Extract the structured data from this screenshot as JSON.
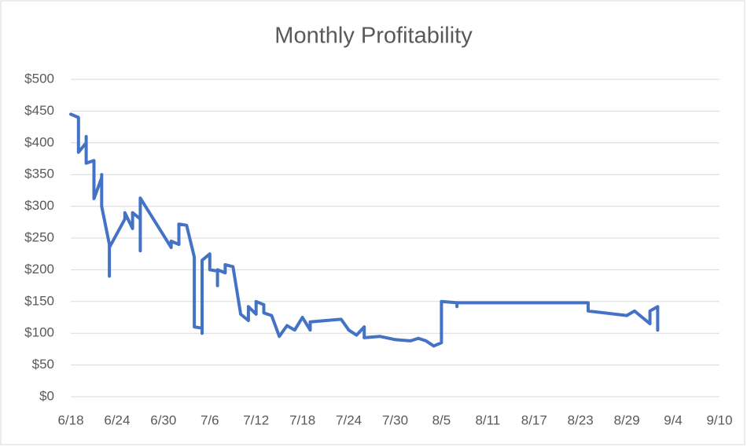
{
  "chart_data": {
    "type": "line",
    "title": "Monthly Profitability",
    "color": "#4472c4",
    "grid": true,
    "x": [
      "6/18",
      "6/19",
      "6/19",
      "6/20",
      "6/20",
      "6/20",
      "6/21",
      "6/21",
      "6/21",
      "6/21",
      "6/22",
      "6/22",
      "6/22",
      "6/22",
      "6/23",
      "6/23",
      "6/23",
      "6/25",
      "6/25",
      "6/26",
      "6/26",
      "6/27",
      "6/27",
      "6/27",
      "7/1",
      "7/1",
      "7/2",
      "7/2",
      "7/3",
      "7/4",
      "7/4",
      "7/5",
      "7/5",
      "7/5",
      "7/6",
      "7/6",
      "7/7",
      "7/7",
      "7/7",
      "7/8",
      "7/8",
      "7/9",
      "7/10",
      "7/11",
      "7/11",
      "7/12",
      "7/12",
      "7/13",
      "7/13",
      "7/14",
      "7/15",
      "7/16",
      "7/17",
      "7/18",
      "7/19",
      "7/19",
      "7/23",
      "7/24",
      "7/25",
      "7/26",
      "7/26",
      "7/28",
      "7/30",
      "8/1",
      "8/2",
      "8/3",
      "8/4",
      "8/5",
      "8/5",
      "8/7",
      "8/7",
      "8/7",
      "8/24",
      "8/24",
      "8/29",
      "8/30",
      "8/31",
      "9/1",
      "9/1",
      "9/2",
      "9/2"
    ],
    "values": [
      445,
      440,
      385,
      400,
      410,
      368,
      372,
      365,
      365,
      312,
      345,
      325,
      350,
      300,
      240,
      190,
      235,
      280,
      290,
      265,
      290,
      280,
      230,
      313,
      235,
      245,
      240,
      272,
      270,
      220,
      110,
      108,
      100,
      215,
      225,
      200,
      198,
      175,
      200,
      195,
      208,
      205,
      130,
      120,
      142,
      130,
      150,
      145,
      132,
      128,
      95,
      112,
      105,
      125,
      105,
      118,
      122,
      105,
      97,
      110,
      93,
      95,
      90,
      88,
      92,
      88,
      80,
      85,
      150,
      148,
      142,
      148,
      148,
      135,
      128,
      135,
      125,
      115,
      135,
      142,
      105
    ],
    "xlim": [
      "6/18",
      "9/10"
    ],
    "xticks": [
      "6/18",
      "6/24",
      "6/30",
      "7/6",
      "7/12",
      "7/18",
      "7/24",
      "7/30",
      "8/5",
      "8/11",
      "8/17",
      "8/23",
      "8/29",
      "9/4",
      "9/10"
    ],
    "ylim": [
      0,
      500
    ],
    "yticks": [
      {
        "value": 0,
        "label": "$0"
      },
      {
        "value": 50,
        "label": "$50"
      },
      {
        "value": 100,
        "label": "$100"
      },
      {
        "value": 150,
        "label": "$150"
      },
      {
        "value": 200,
        "label": "$200"
      },
      {
        "value": 250,
        "label": "$250"
      },
      {
        "value": 300,
        "label": "$300"
      },
      {
        "value": 350,
        "label": "$350"
      },
      {
        "value": 400,
        "label": "$400"
      },
      {
        "value": 450,
        "label": "$450"
      },
      {
        "value": 500,
        "label": "$500"
      }
    ]
  }
}
